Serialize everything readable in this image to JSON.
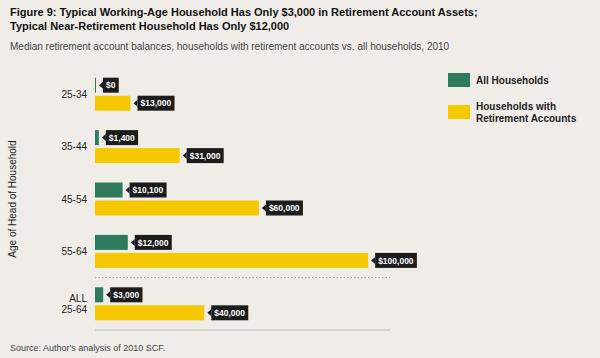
{
  "chart_data": {
    "type": "bar",
    "orientation": "horizontal",
    "title": "Figure 9: Typical Working-Age Household Has Only $3,000 in Retirement Account Assets;\nTypical Near-Retirement Household Has Only $12,000",
    "subtitle": "Median retirement account balances, households with retirement accounts vs. all households, 2010",
    "source": "Source:  Author's analysis of 2010 SCF.",
    "ylabel": "Age of Head of Household",
    "categories": [
      "25-34",
      "35-44",
      "45-54",
      "55-64",
      "ALL\n25-64"
    ],
    "series": [
      {
        "name": "All Households",
        "color": "#2d7a5f",
        "values": [
          0,
          1400,
          10100,
          12000,
          3000
        ],
        "value_labels": [
          "$0",
          "$1,400",
          "$10,100",
          "$12,000",
          "$3,000"
        ]
      },
      {
        "name": "Households with\nRetirement Accounts",
        "color": "#f5c800",
        "values": [
          13000,
          31000,
          60000,
          100000,
          40000
        ],
        "value_labels": [
          "$13,000",
          "$31,000",
          "$60,000",
          "$100,000",
          "$40,000"
        ]
      }
    ],
    "xlim": [
      0,
      108000
    ],
    "data_labels": true,
    "tick_labels": "y",
    "grid": false,
    "legend": "upper right"
  }
}
